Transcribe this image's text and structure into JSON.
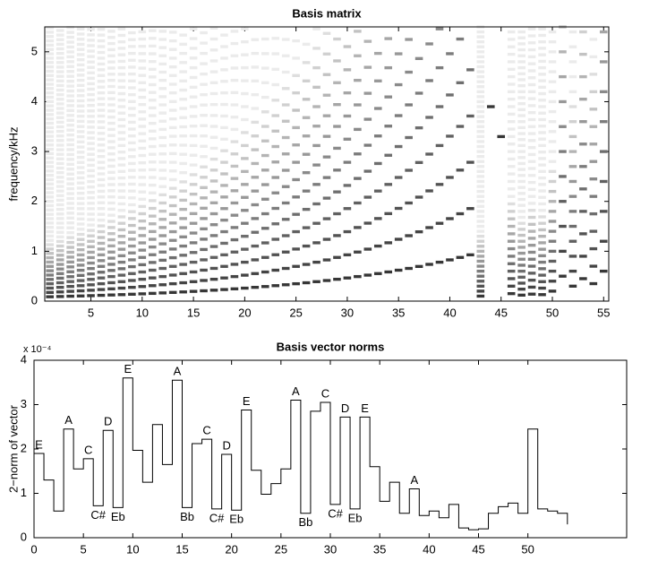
{
  "chart_data": [
    {
      "type": "harmonic-image",
      "title": "Basis matrix",
      "y_label": "frequency/kHz",
      "xlim": [
        0.5,
        55.5
      ],
      "xticks": [
        5,
        10,
        15,
        20,
        25,
        30,
        35,
        40,
        45,
        50,
        55
      ],
      "ylim": [
        0,
        5.5
      ],
      "yticks": [
        0,
        1,
        2,
        3,
        4,
        5
      ],
      "x": [
        1,
        2,
        3,
        4,
        5,
        6,
        7,
        8,
        9,
        10,
        11,
        12,
        13,
        14,
        15,
        16,
        17,
        18,
        19,
        20,
        21,
        22,
        23,
        24,
        25,
        26,
        27,
        28,
        29,
        30,
        31,
        32,
        33,
        34,
        35,
        36,
        37,
        38,
        39,
        40,
        41,
        42,
        43,
        44,
        45,
        46,
        47,
        48,
        49,
        50,
        51,
        52,
        53,
        54,
        55
      ],
      "fundamentals": [
        0.087,
        0.092,
        0.098,
        0.103,
        0.109,
        0.116,
        0.123,
        0.13,
        0.138,
        0.146,
        0.155,
        0.164,
        0.174,
        0.184,
        0.195,
        0.207,
        0.219,
        0.232,
        0.246,
        0.26,
        0.276,
        0.292,
        0.31,
        0.328,
        0.348,
        0.368,
        0.39,
        0.413,
        0.438,
        0.464,
        0.492,
        0.521,
        0.552,
        0.585,
        0.62,
        0.656,
        0.695,
        0.737,
        0.78,
        0.827,
        0.876,
        0.928,
        0.1,
        3.9,
        3.3,
        0.15,
        0.12,
        0.14,
        0.13,
        0.2,
        0.5,
        0.3,
        0.45,
        0.35,
        0.6
      ]
    },
    {
      "type": "step",
      "title": "Basis vector norms",
      "y_label": "2−norm of vector",
      "y_exponent_label": "x 10⁻⁴",
      "xlim": [
        0,
        60
      ],
      "xticks": [
        0,
        5,
        10,
        15,
        20,
        25,
        30,
        35,
        40,
        45,
        50
      ],
      "ylim": [
        0,
        4
      ],
      "yticks": [
        0,
        1,
        2,
        3,
        4
      ],
      "x": [
        0,
        1,
        2,
        3,
        4,
        5,
        6,
        7,
        8,
        9,
        10,
        11,
        12,
        13,
        14,
        15,
        16,
        17,
        18,
        19,
        20,
        21,
        22,
        23,
        24,
        25,
        26,
        27,
        28,
        29,
        30,
        31,
        32,
        33,
        34,
        35,
        36,
        37,
        38,
        39,
        40,
        41,
        42,
        43,
        44,
        45,
        46,
        47,
        48,
        49,
        50,
        51,
        52,
        53,
        54
      ],
      "values": [
        1.9,
        1.3,
        0.6,
        2.45,
        1.55,
        1.78,
        0.72,
        2.42,
        0.68,
        3.6,
        1.97,
        1.25,
        2.55,
        1.65,
        3.55,
        0.68,
        2.12,
        2.22,
        0.65,
        1.88,
        0.62,
        2.88,
        1.52,
        0.98,
        1.22,
        1.55,
        3.1,
        0.55,
        2.85,
        3.05,
        0.75,
        2.72,
        0.65,
        2.72,
        1.6,
        0.82,
        1.25,
        0.55,
        1.1,
        0.5,
        0.6,
        0.45,
        0.75,
        0.22,
        0.18,
        0.2,
        0.55,
        0.7,
        0.78,
        0.55,
        2.45,
        0.65,
        0.6,
        0.55,
        0.3
      ],
      "annotations": [
        {
          "text": "E",
          "x": 0,
          "position": "above"
        },
        {
          "text": "A",
          "x": 3,
          "position": "above"
        },
        {
          "text": "C",
          "x": 5,
          "position": "above"
        },
        {
          "text": "C#",
          "x": 6,
          "position": "below"
        },
        {
          "text": "D",
          "x": 7,
          "position": "above"
        },
        {
          "text": "Eb",
          "x": 8,
          "position": "below"
        },
        {
          "text": "E",
          "x": 9,
          "position": "above"
        },
        {
          "text": "A",
          "x": 14,
          "position": "above"
        },
        {
          "text": "Bb",
          "x": 15,
          "position": "below"
        },
        {
          "text": "C",
          "x": 17,
          "position": "above"
        },
        {
          "text": "C#",
          "x": 18,
          "position": "below"
        },
        {
          "text": "D",
          "x": 19,
          "position": "above"
        },
        {
          "text": "Eb",
          "x": 20,
          "position": "below"
        },
        {
          "text": "E",
          "x": 21,
          "position": "above"
        },
        {
          "text": "A",
          "x": 26,
          "position": "above"
        },
        {
          "text": "Bb",
          "x": 27,
          "position": "below"
        },
        {
          "text": "C",
          "x": 29,
          "position": "above"
        },
        {
          "text": "C#",
          "x": 30,
          "position": "below"
        },
        {
          "text": "D",
          "x": 31,
          "position": "above"
        },
        {
          "text": "Eb",
          "x": 32,
          "position": "below"
        },
        {
          "text": "E",
          "x": 33,
          "position": "above"
        },
        {
          "text": "A",
          "x": 38,
          "position": "above"
        }
      ]
    }
  ]
}
